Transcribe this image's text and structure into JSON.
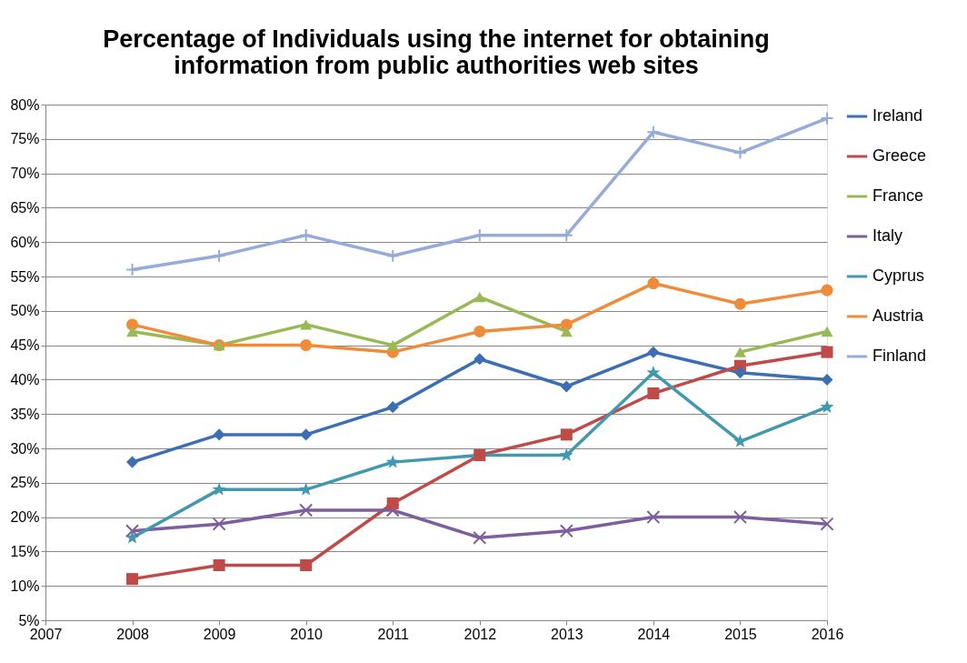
{
  "chart_data": {
    "type": "line",
    "title": "Percentage of Individuals using the internet for obtaining information from public authorities web sites",
    "x": [
      2008,
      2009,
      2010,
      2011,
      2012,
      2013,
      2014,
      2015,
      2016
    ],
    "xlim": [
      2007,
      2016
    ],
    "xticks": [
      2007,
      2008,
      2009,
      2010,
      2011,
      2012,
      2013,
      2014,
      2015,
      2016
    ],
    "ylim": [
      5,
      80
    ],
    "yticks": [
      {
        "value": 5,
        "label": "5%"
      },
      {
        "value": 10,
        "label": "10%"
      },
      {
        "value": 15,
        "label": "15%"
      },
      {
        "value": 20,
        "label": "20%"
      },
      {
        "value": 25,
        "label": "25%"
      },
      {
        "value": 30,
        "label": "30%"
      },
      {
        "value": 35,
        "label": "35%"
      },
      {
        "value": 40,
        "label": "40%"
      },
      {
        "value": 45,
        "label": "45%"
      },
      {
        "value": 50,
        "label": "50%"
      },
      {
        "value": 55,
        "label": "55%"
      },
      {
        "value": 60,
        "label": "60%"
      },
      {
        "value": 65,
        "label": "65%"
      },
      {
        "value": 70,
        "label": "70%"
      },
      {
        "value": 75,
        "label": "75%"
      },
      {
        "value": 80,
        "label": "80%"
      }
    ],
    "grid": "y",
    "legend": "right",
    "line_style": "solid",
    "series": [
      {
        "name": "Ireland",
        "color": "#3c6eb4",
        "marker": "diamond",
        "values": [
          28,
          32,
          32,
          36,
          43,
          39,
          44,
          41,
          40
        ]
      },
      {
        "name": "Greece",
        "color": "#be4b48",
        "marker": "square",
        "values": [
          11,
          13,
          13,
          22,
          29,
          32,
          38,
          42,
          44
        ]
      },
      {
        "name": "France",
        "color": "#98b954",
        "marker": "triangle",
        "values": [
          47,
          45,
          48,
          45,
          52,
          47,
          null,
          44,
          47
        ]
      },
      {
        "name": "Italy",
        "color": "#7d5fa0",
        "marker": "cross",
        "values": [
          18,
          19,
          21,
          21,
          17,
          18,
          20,
          20,
          19
        ]
      },
      {
        "name": "Cyprus",
        "color": "#4198af",
        "marker": "star",
        "values": [
          17,
          24,
          24,
          28,
          29,
          29,
          41,
          31,
          36
        ]
      },
      {
        "name": "Austria",
        "color": "#f08c39",
        "marker": "circle",
        "values": [
          48,
          45,
          45,
          44,
          47,
          48,
          54,
          51,
          53
        ]
      },
      {
        "name": "Finland",
        "color": "#95abd8",
        "marker": "plus",
        "values": [
          56,
          58,
          61,
          58,
          61,
          61,
          76,
          73,
          78
        ]
      }
    ]
  }
}
